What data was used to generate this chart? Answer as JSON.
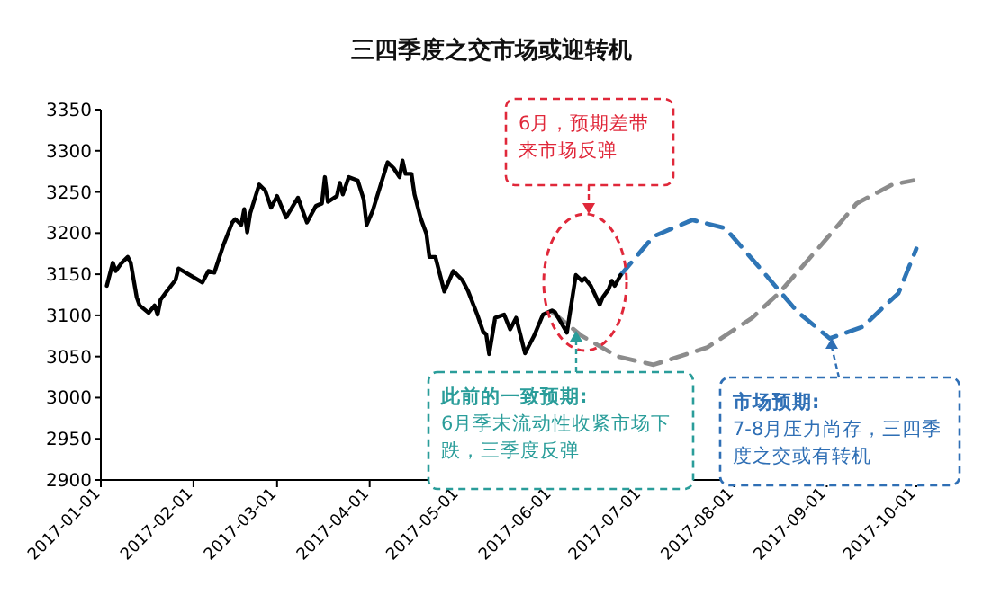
{
  "chart_data": {
    "type": "line",
    "title": "三四季度之交市场或迎转机",
    "xlim": [
      "2017-01-01",
      "2017-10-01"
    ],
    "xticks": [
      "2017-01-01",
      "2017-02-01",
      "2017-03-01",
      "2017-04-01",
      "2017-05-01",
      "2017-06-01",
      "2017-07-01",
      "2017-08-01",
      "2017-09-01",
      "2017-10-01"
    ],
    "ylim": [
      2900,
      3350
    ],
    "yticks": [
      2900,
      2950,
      3000,
      3050,
      3100,
      3150,
      3200,
      3250,
      3300,
      3350
    ],
    "series": [
      {
        "color": "#000000",
        "line_style": "solid",
        "x": [
          "2017-01-03",
          "2017-01-05",
          "2017-01-06",
          "2017-01-08",
          "2017-01-10",
          "2017-01-11",
          "2017-01-13",
          "2017-01-14",
          "2017-01-17",
          "2017-01-19",
          "2017-01-20",
          "2017-01-21",
          "2017-01-23",
          "2017-01-26",
          "2017-01-27",
          "2017-02-04",
          "2017-02-06",
          "2017-02-08",
          "2017-02-11",
          "2017-02-14",
          "2017-02-15",
          "2017-02-17",
          "2017-02-18",
          "2017-02-19",
          "2017-02-20",
          "2017-02-23",
          "2017-02-25",
          "2017-02-27",
          "2017-03-01",
          "2017-03-04",
          "2017-03-08",
          "2017-03-11",
          "2017-03-14",
          "2017-03-16",
          "2017-03-17",
          "2017-03-18",
          "2017-03-21",
          "2017-03-22",
          "2017-03-23",
          "2017-03-25",
          "2017-03-28",
          "2017-03-30",
          "2017-03-31",
          "2017-04-02",
          "2017-04-07",
          "2017-04-09",
          "2017-04-11",
          "2017-04-12",
          "2017-04-13",
          "2017-04-15",
          "2017-04-16",
          "2017-04-18",
          "2017-04-20",
          "2017-04-21",
          "2017-04-23",
          "2017-04-26",
          "2017-04-29",
          "2017-05-02",
          "2017-05-04",
          "2017-05-07",
          "2017-05-09",
          "2017-05-10",
          "2017-05-11",
          "2017-05-13",
          "2017-05-16",
          "2017-05-18",
          "2017-05-20",
          "2017-05-23",
          "2017-05-26",
          "2017-05-29",
          "2017-06-01",
          "2017-06-02",
          "2017-06-06",
          "2017-06-09",
          "2017-06-11",
          "2017-06-12",
          "2017-06-14",
          "2017-06-17",
          "2017-06-18",
          "2017-06-20",
          "2017-06-21",
          "2017-06-22",
          "2017-06-24"
        ],
        "values": [
          3136,
          3164,
          3154,
          3164,
          3171,
          3164,
          3122,
          3112,
          3103,
          3112,
          3101,
          3119,
          3129,
          3143,
          3157,
          3140,
          3154,
          3152,
          3185,
          3213,
          3217,
          3210,
          3229,
          3201,
          3224,
          3259,
          3252,
          3231,
          3245,
          3219,
          3243,
          3213,
          3233,
          3236,
          3268,
          3238,
          3245,
          3261,
          3247,
          3268,
          3264,
          3241,
          3210,
          3227,
          3286,
          3279,
          3268,
          3288,
          3272,
          3272,
          3247,
          3219,
          3199,
          3171,
          3171,
          3129,
          3154,
          3143,
          3129,
          3101,
          3080,
          3077,
          3053,
          3097,
          3101,
          3083,
          3097,
          3054,
          3075,
          3101,
          3106,
          3104,
          3079,
          3149,
          3142,
          3145,
          3136,
          3113,
          3122,
          3132,
          3142,
          3136,
          3149
        ]
      },
      {
        "color": "#8c8c8c",
        "line_style": "dashed",
        "x": [
          "2017-06-01",
          "2017-06-11",
          "2017-06-23",
          "2017-07-05",
          "2017-07-23",
          "2017-08-07",
          "2017-08-16",
          "2017-08-30",
          "2017-09-11",
          "2017-09-23",
          "2017-09-30"
        ],
        "values": [
          3104,
          3075,
          3050,
          3040,
          3061,
          3097,
          3127,
          3185,
          3236,
          3259,
          3264
        ]
      },
      {
        "color": "#2e75b6",
        "line_style": "dashed",
        "x": [
          "2017-06-24",
          "2017-07-05",
          "2017-07-18",
          "2017-07-29",
          "2017-08-10",
          "2017-08-22",
          "2017-09-02",
          "2017-09-13",
          "2017-09-25",
          "2017-10-01"
        ],
        "values": [
          3149,
          3196,
          3216,
          3206,
          3156,
          3105,
          3072,
          3086,
          3127,
          3181
        ]
      }
    ],
    "annotations": [
      "6月，预期差带来市场反弹",
      "此前的一致预期:",
      "6月季末流动性收紧市场下跌，三季度反弹",
      "市场预期:",
      "7-8月压力尚存，三四季度之交或有转机"
    ]
  }
}
